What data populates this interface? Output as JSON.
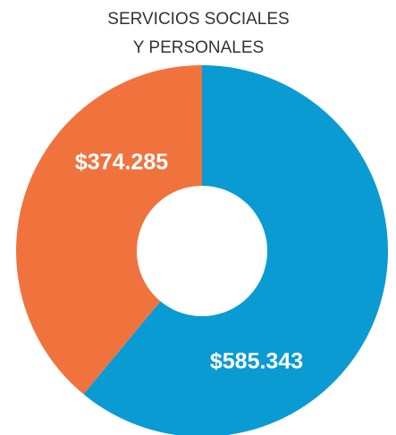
{
  "chart_data": {
    "type": "donut",
    "title": [
      "SERVICIOS SOCIALES",
      "Y PERSONALES"
    ],
    "categories": [
      null,
      null
    ],
    "values": [
      585343,
      374285
    ],
    "value_labels": [
      "$585.343",
      "$374.285"
    ],
    "colors": [
      "#0a9bd3",
      "#f0733e"
    ]
  }
}
